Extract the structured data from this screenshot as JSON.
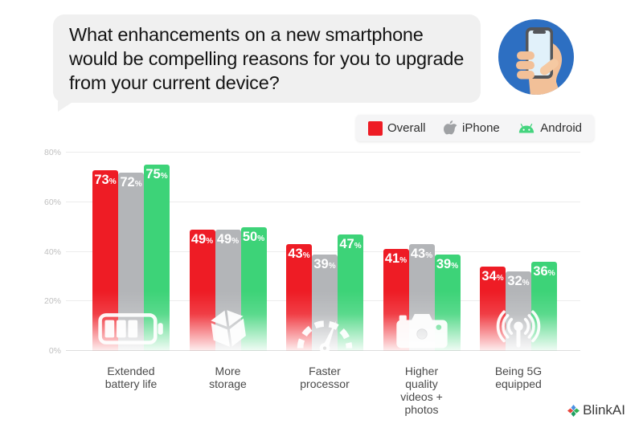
{
  "header": {
    "question": "What enhancements on a new smartphone would be compelling reasons for you to upgrade from your current device?",
    "badge_icon": "hand-holding-smartphone",
    "badge_colors": {
      "circle": "#2d6fc2",
      "skin": "#f2c098",
      "phone_frame": "#54565a",
      "screen": "#e1f1fa"
    }
  },
  "legend": {
    "items": [
      {
        "label": "Overall",
        "icon": "red-square",
        "color": "#ee1c25"
      },
      {
        "label": "iPhone",
        "icon": "apple-logo",
        "color": "#9fa1a4"
      },
      {
        "label": "Android",
        "icon": "android-logo",
        "color": "#44d47e"
      }
    ]
  },
  "chart_data": {
    "type": "bar",
    "title": "",
    "categories": [
      "Extended battery life",
      "More storage",
      "Faster processor",
      "Higher quality videos + photos",
      "Being 5G equipped"
    ],
    "category_icons": [
      "battery-icon",
      "storage-box-icon",
      "speedometer-icon",
      "camera-icon",
      "antenna-5g-icon"
    ],
    "series": [
      {
        "name": "Overall",
        "color": "#ee1c25",
        "values": [
          73,
          49,
          43,
          41,
          34
        ]
      },
      {
        "name": "iPhone",
        "color": "#b3b5b8",
        "values": [
          72,
          49,
          39,
          43,
          32
        ]
      },
      {
        "name": "Android",
        "color": "#3dd378",
        "values": [
          75,
          50,
          47,
          39,
          36
        ]
      }
    ],
    "xlabel": "",
    "ylabel": "",
    "ylim": [
      0,
      80
    ],
    "yticks": [
      0,
      20,
      40,
      60,
      80
    ],
    "ytick_labels": [
      "0%",
      "20%",
      "40%",
      "60%",
      "80%"
    ],
    "value_suffix": "%",
    "grid": true,
    "legend_position": "top-right"
  },
  "footer": {
    "brand": "BlinkAI",
    "logo_colors": {
      "top": "#4a90e2",
      "left": "#e8453c",
      "right": "#30b356",
      "bottom": "#1e9e62"
    }
  }
}
